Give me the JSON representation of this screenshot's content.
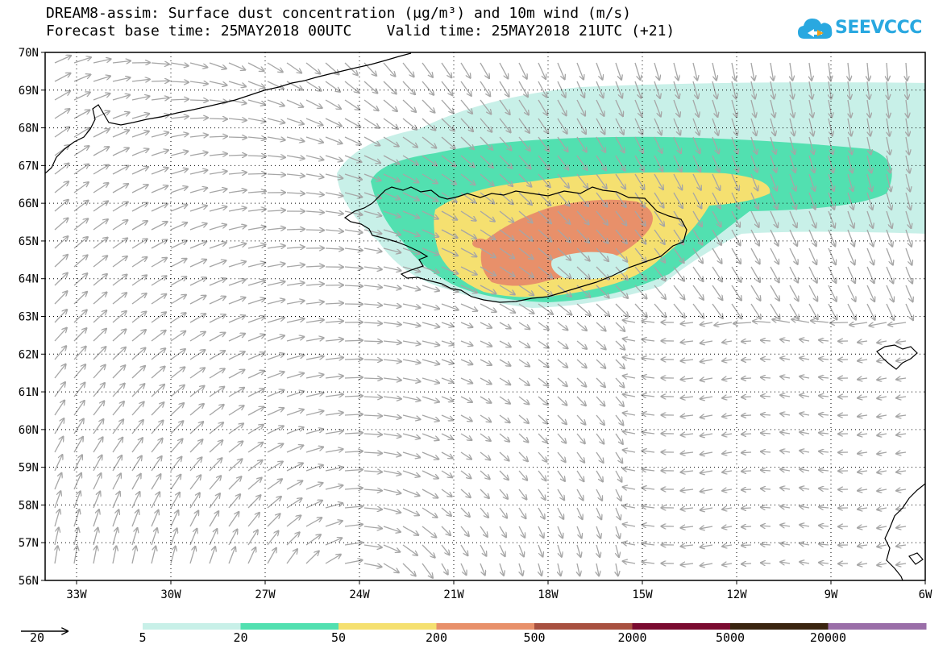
{
  "header": {
    "line1": "DREAM8-assim: Surface dust concentration (µg/m³) and 10m wind (m/s)",
    "line2": "Forecast base time: 25MAY2018 00UTC    Valid time: 25MAY2018 21UTC (+21)"
  },
  "logo": {
    "text": "SEEVCCC",
    "cloud_color": "#29a8e0",
    "accent_color": "#f3a21a"
  },
  "map": {
    "lat_range": [
      56,
      70
    ],
    "lon_range": [
      -34,
      -6
    ],
    "lat_labels": [
      "56N",
      "57N",
      "58N",
      "59N",
      "60N",
      "61N",
      "62N",
      "63N",
      "64N",
      "65N",
      "66N",
      "67N",
      "68N",
      "69N",
      "70N"
    ],
    "lon_labels": [
      {
        "lon": -33,
        "label": "33W"
      },
      {
        "lon": -30,
        "label": "30W"
      },
      {
        "lon": -27,
        "label": "27W"
      },
      {
        "lon": -24,
        "label": "24W"
      },
      {
        "lon": -21,
        "label": "21W"
      },
      {
        "lon": -18,
        "label": "18W"
      },
      {
        "lon": -15,
        "label": "15W"
      },
      {
        "lon": -12,
        "label": "12W"
      },
      {
        "lon": -9,
        "label": "9W"
      },
      {
        "lon": -6,
        "label": "6W"
      }
    ],
    "wind_arrow_color": "#a6a6a6",
    "coastline_color": "#000000"
  },
  "legend": {
    "reference_vector_label": "20",
    "colors": [
      "#c8f0e8",
      "#52e0b0",
      "#f5e070",
      "#e8906a",
      "#a85040",
      "#7a0a30",
      "#3a2410",
      "#9a6ea8"
    ],
    "labels": [
      "5",
      "20",
      "50",
      "200",
      "500",
      "2000",
      "5000",
      "20000"
    ]
  }
}
